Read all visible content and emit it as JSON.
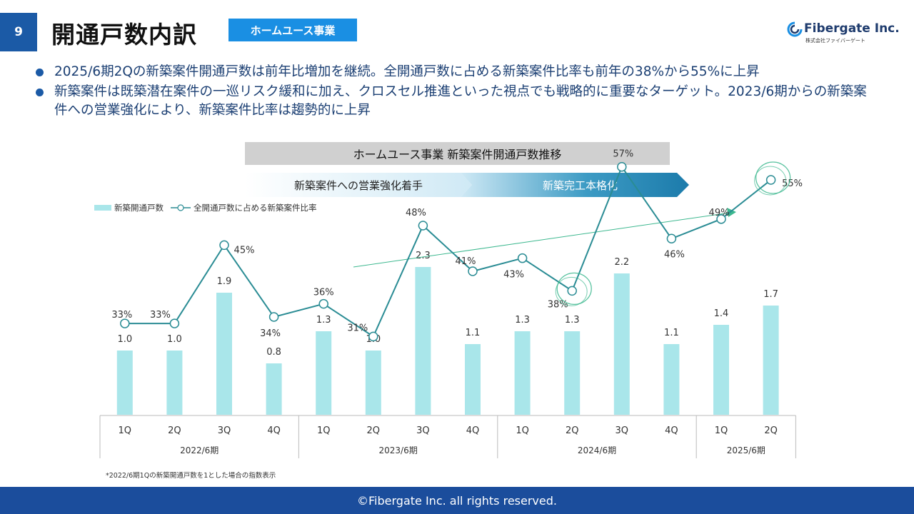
{
  "header": {
    "page_number": "9",
    "title": "開通戸数内訳",
    "segment_badge": "ホームユース事業",
    "logo_text": "Fibergate Inc.",
    "logo_subtext": "株式会社ファイバーゲート"
  },
  "bullets": [
    "2025/6期2Qの新築案件開通戸数は前年比増加を継続。全開通戸数に占める新築案件比率も前年の38%から55%に上昇",
    "新築案件は既築潜在案件の一巡リスク緩和に加え、クロスセル推進といった視点でも戦略的に重要なターゲット。2023/6期からの新築案件への営業強化により、新築案件比率は趨勢的に上昇"
  ],
  "phases": {
    "phase1": "新築案件への営業強化着手",
    "phase2": "新築完工本格化"
  },
  "chart_data": {
    "type": "bar+line",
    "title": "ホームユース事業 新築案件開通戸数推移",
    "categories": [
      "1Q",
      "2Q",
      "3Q",
      "4Q",
      "1Q",
      "2Q",
      "3Q",
      "4Q",
      "1Q",
      "2Q",
      "3Q",
      "4Q",
      "1Q",
      "2Q"
    ],
    "fiscal_groups": [
      {
        "label": "2022/6期",
        "count": 4
      },
      {
        "label": "2023/6期",
        "count": 4
      },
      {
        "label": "2024/6期",
        "count": 4
      },
      {
        "label": "2025/6期",
        "count": 2
      }
    ],
    "series": [
      {
        "name": "新築開通戸数",
        "kind": "bar",
        "color": "#a9e6ea",
        "values": [
          1.0,
          1.0,
          1.9,
          0.8,
          1.3,
          1.0,
          2.3,
          1.1,
          1.3,
          1.3,
          2.2,
          1.1,
          1.4,
          1.7
        ],
        "labels": [
          "1.0",
          "1.0",
          "1.9",
          "0.8",
          "1.3",
          "1.0",
          "2.3",
          "1.1",
          "1.3",
          "1.3",
          "2.2",
          "1.1",
          "1.4",
          "1.7"
        ]
      },
      {
        "name": "全開通戸数に占める新築案件比率",
        "kind": "line",
        "color": "#2a8c94",
        "values": [
          33,
          33,
          45,
          34,
          36,
          31,
          48,
          41,
          43,
          38,
          57,
          46,
          49,
          55
        ],
        "labels": [
          "33%",
          "33%",
          "45%",
          "34%",
          "36%",
          "31%",
          "48%",
          "41%",
          "43%",
          "38%",
          "57%",
          "46%",
          "49%",
          "55%"
        ]
      }
    ],
    "highlighted_points": [
      "38%",
      "55%"
    ],
    "trend_arrow_color": "#3db88f",
    "footnote": "*2022/6期1Qの新築開通戸数を1とした場合の指数表示"
  },
  "footer": {
    "copyright": "©Fibergate Inc. all rights reserved."
  }
}
